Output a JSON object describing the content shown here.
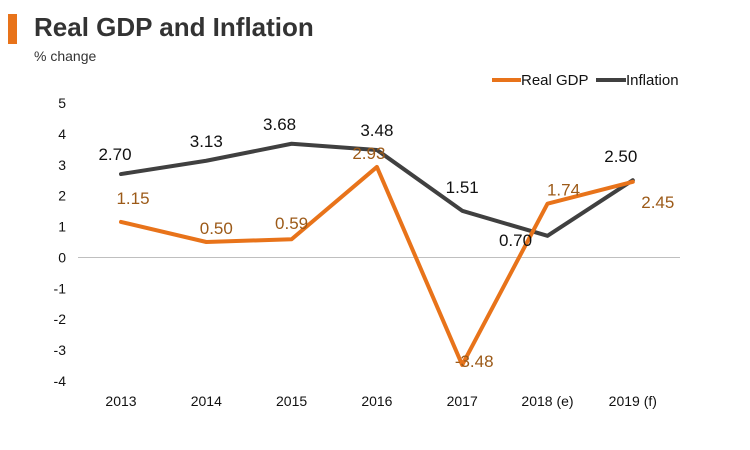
{
  "header": {
    "title": "Real GDP and Inflation",
    "subtitle": "% change"
  },
  "colors": {
    "accent": "#e8731a",
    "real_gdp": "#e8731a",
    "inflation": "#404040",
    "gdp_label": "#9c5a18"
  },
  "chart_data": {
    "type": "line",
    "title": "Real GDP and Inflation",
    "subtitle": "% change",
    "xlabel": "",
    "ylabel": "",
    "categories": [
      "2013",
      "2014",
      "2015",
      "2016",
      "2017",
      "2018 (e)",
      "2019 (f)"
    ],
    "ylim": [
      -4,
      5
    ],
    "yticks": [
      -4,
      -3,
      -2,
      -1,
      0,
      1,
      2,
      3,
      4,
      5
    ],
    "legend_position": "top-right",
    "series": [
      {
        "name": "Real GDP",
        "values": [
          1.15,
          0.5,
          0.59,
          2.93,
          -3.48,
          1.74,
          2.45
        ],
        "labels": [
          "1.15",
          "0.50",
          "0.59",
          "2.93",
          "-3.48",
          "1.74",
          "2.45"
        ]
      },
      {
        "name": "Inflation",
        "values": [
          2.7,
          3.13,
          3.68,
          3.48,
          1.51,
          0.7,
          2.5
        ],
        "labels": [
          "2.70",
          "3.13",
          "3.68",
          "3.48",
          "1.51",
          "0.70",
          "2.50"
        ]
      }
    ]
  }
}
